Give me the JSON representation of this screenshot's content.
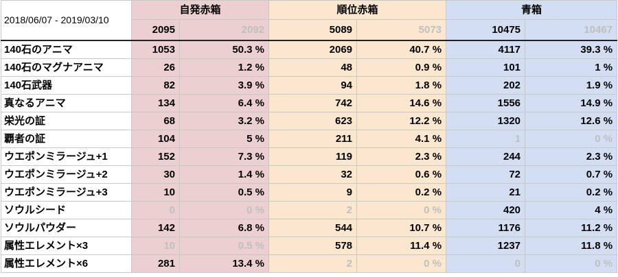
{
  "date_range": "2018/06/07 - 2019/03/10",
  "groups": [
    {
      "name": "自発赤箱",
      "count": "2095",
      "count_alt": "2092"
    },
    {
      "name": "順位赤箱",
      "count": "5089",
      "count_alt": "5073"
    },
    {
      "name": "青箱",
      "count": "10475",
      "count_alt": "10467"
    }
  ],
  "rows": [
    {
      "label": "140石のアニマ",
      "cells": [
        {
          "n": "1053",
          "p": "50.3 %",
          "muted": false
        },
        {
          "n": "2069",
          "p": "40.7 %",
          "muted": false
        },
        {
          "n": "4117",
          "p": "39.3 %",
          "muted": false
        }
      ]
    },
    {
      "label": "140石のマグナアニマ",
      "cells": [
        {
          "n": "26",
          "p": "1.2 %",
          "muted": false
        },
        {
          "n": "48",
          "p": "0.9 %",
          "muted": false
        },
        {
          "n": "101",
          "p": "1 %",
          "muted": false
        }
      ]
    },
    {
      "label": "140石武器",
      "cells": [
        {
          "n": "82",
          "p": "3.9 %",
          "muted": false
        },
        {
          "n": "94",
          "p": "1.8 %",
          "muted": false
        },
        {
          "n": "202",
          "p": "1.9 %",
          "muted": false
        }
      ]
    },
    {
      "label": "真なるアニマ",
      "cells": [
        {
          "n": "134",
          "p": "6.4 %",
          "muted": false
        },
        {
          "n": "742",
          "p": "14.6 %",
          "muted": false
        },
        {
          "n": "1556",
          "p": "14.9 %",
          "muted": false
        }
      ]
    },
    {
      "label": "栄光の証",
      "cells": [
        {
          "n": "68",
          "p": "3.2 %",
          "muted": false
        },
        {
          "n": "623",
          "p": "12.2 %",
          "muted": false
        },
        {
          "n": "1320",
          "p": "12.6 %",
          "muted": false
        }
      ]
    },
    {
      "label": "覇者の証",
      "cells": [
        {
          "n": "104",
          "p": "5 %",
          "muted": false
        },
        {
          "n": "211",
          "p": "4.1 %",
          "muted": false
        },
        {
          "n": "1",
          "p": "0 %",
          "muted": true
        }
      ]
    },
    {
      "label": "ウエポンミラージュ+1",
      "cells": [
        {
          "n": "152",
          "p": "7.3 %",
          "muted": false
        },
        {
          "n": "119",
          "p": "2.3 %",
          "muted": false
        },
        {
          "n": "244",
          "p": "2.3 %",
          "muted": false
        }
      ]
    },
    {
      "label": "ウエポンミラージュ+2",
      "cells": [
        {
          "n": "30",
          "p": "1.4 %",
          "muted": false
        },
        {
          "n": "32",
          "p": "0.6 %",
          "muted": false
        },
        {
          "n": "72",
          "p": "0.7 %",
          "muted": false
        }
      ]
    },
    {
      "label": "ウエポンミラージュ+3",
      "cells": [
        {
          "n": "10",
          "p": "0.5 %",
          "muted": false
        },
        {
          "n": "9",
          "p": "0.2 %",
          "muted": false
        },
        {
          "n": "21",
          "p": "0.2 %",
          "muted": false
        }
      ]
    },
    {
      "label": "ソウルシード",
      "cells": [
        {
          "n": "0",
          "p": "0 %",
          "muted": true
        },
        {
          "n": "2",
          "p": "0 %",
          "muted": true
        },
        {
          "n": "420",
          "p": "4 %",
          "muted": false
        }
      ]
    },
    {
      "label": "ソウルパウダー",
      "cells": [
        {
          "n": "142",
          "p": "6.8 %",
          "muted": false
        },
        {
          "n": "544",
          "p": "10.7 %",
          "muted": false
        },
        {
          "n": "1176",
          "p": "11.2 %",
          "muted": false
        }
      ]
    },
    {
      "label": "属性エレメント×3",
      "cells": [
        {
          "n": "10",
          "p": "0.5 %",
          "muted": true
        },
        {
          "n": "578",
          "p": "11.4 %",
          "muted": false
        },
        {
          "n": "1237",
          "p": "11.8 %",
          "muted": false
        }
      ]
    },
    {
      "label": "属性エレメント×6",
      "cells": [
        {
          "n": "281",
          "p": "13.4 %",
          "muted": false
        },
        {
          "n": "2",
          "p": "0 %",
          "muted": true
        },
        {
          "n": "0",
          "p": "0 %",
          "muted": true
        }
      ]
    }
  ],
  "colors": {
    "group1_bg": "#eccfd0",
    "group2_bg": "#fbe6cf",
    "group3_bg": "#d3def3",
    "muted_text": "#bfbfbf"
  }
}
